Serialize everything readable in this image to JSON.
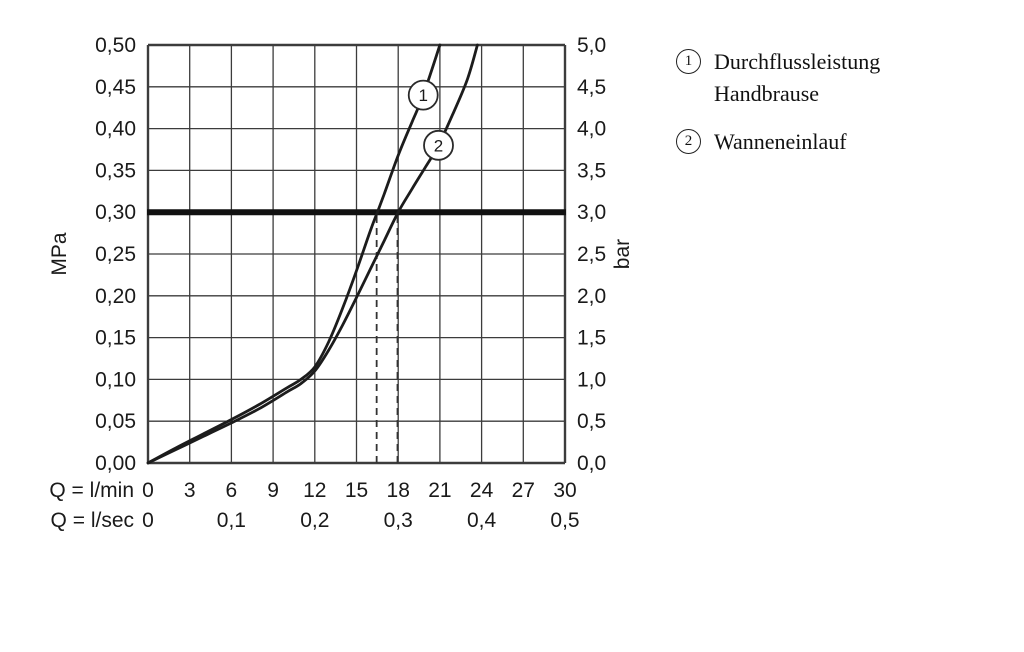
{
  "chart_data": {
    "type": "line",
    "title": "",
    "x_axis": {
      "caption_lmin": "Q = l/min",
      "caption_lsec": "Q = l/sec",
      "ticks_lmin": [
        "0",
        "3",
        "6",
        "9",
        "12",
        "15",
        "18",
        "21",
        "24",
        "27",
        "30"
      ],
      "ticks_lsec": [
        "0",
        "0,1",
        "0,2",
        "0,3",
        "0,4",
        "0,5"
      ],
      "range_lmin": [
        0,
        30
      ],
      "grid_step_lmin": 3
    },
    "y_axis_left": {
      "label": "MPa",
      "ticks": [
        "0,50",
        "0,45",
        "0,40",
        "0,35",
        "0,30",
        "0,25",
        "0,20",
        "0,15",
        "0,10",
        "0,05",
        "0,00"
      ],
      "range_mpa": [
        0,
        0.5
      ],
      "grid_step_mpa": 0.05
    },
    "y_axis_right": {
      "label": "bar",
      "ticks": [
        "5,0",
        "4,5",
        "4,0",
        "3,5",
        "3,0",
        "2,5",
        "2,0",
        "1,5",
        "1,0",
        "0,5",
        "0,0"
      ],
      "range_bar": [
        0,
        5
      ]
    },
    "reference_line_mpa": 0.3,
    "guide_lines": [
      {
        "x_lmin": 16.45,
        "to_mpa": 0.3
      },
      {
        "x_lmin": 17.95,
        "to_mpa": 0.3
      }
    ],
    "series": [
      {
        "id": "1",
        "name": "Durchflussleistung Handbrause",
        "marker": {
          "x_lmin": 19.8,
          "y_mpa": 0.44
        },
        "points_lmin_mpa": [
          [
            0,
            0
          ],
          [
            2,
            0.018
          ],
          [
            4,
            0.035
          ],
          [
            6,
            0.052
          ],
          [
            8,
            0.07
          ],
          [
            10,
            0.09
          ],
          [
            11,
            0.1
          ],
          [
            12,
            0.115
          ],
          [
            13,
            0.145
          ],
          [
            14,
            0.185
          ],
          [
            15,
            0.23
          ],
          [
            16,
            0.278
          ],
          [
            16.5,
            0.3
          ],
          [
            17,
            0.322
          ],
          [
            18,
            0.368
          ],
          [
            19,
            0.408
          ],
          [
            19.8,
            0.44
          ],
          [
            21,
            0.5
          ]
        ]
      },
      {
        "id": "2",
        "name": "Wanneneinlauf",
        "marker": {
          "x_lmin": 20.9,
          "y_mpa": 0.38
        },
        "points_lmin_mpa": [
          [
            0,
            0
          ],
          [
            2,
            0.016
          ],
          [
            4,
            0.032
          ],
          [
            6,
            0.048
          ],
          [
            8,
            0.065
          ],
          [
            10,
            0.085
          ],
          [
            11,
            0.095
          ],
          [
            12,
            0.11
          ],
          [
            13,
            0.135
          ],
          [
            14,
            0.165
          ],
          [
            15,
            0.198
          ],
          [
            16,
            0.232
          ],
          [
            17,
            0.266
          ],
          [
            18,
            0.3
          ],
          [
            19,
            0.328
          ],
          [
            20,
            0.355
          ],
          [
            20.9,
            0.38
          ],
          [
            22,
            0.42
          ],
          [
            23,
            0.46
          ],
          [
            23.7,
            0.5
          ]
        ]
      }
    ],
    "colors": {
      "curve": "#1c1c1c",
      "grid": "#3c3c3c",
      "frame": "#2a2a2a",
      "reference": "#111111",
      "guide": "#333333",
      "background": "#ffffff"
    }
  },
  "legend": {
    "items": [
      {
        "symbol": "1",
        "label": "Durchflussleistung Handbrause"
      },
      {
        "symbol": "2",
        "label": "Wanneneinlauf"
      }
    ]
  }
}
